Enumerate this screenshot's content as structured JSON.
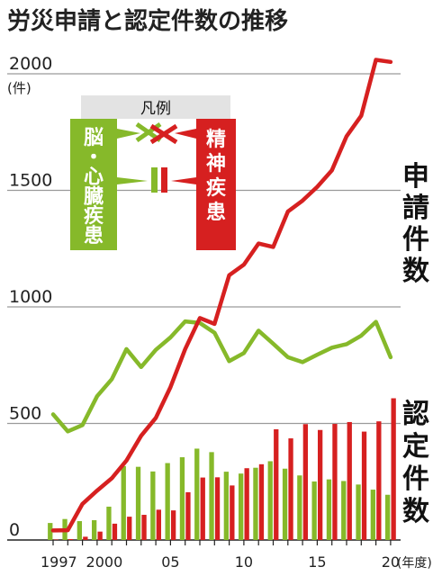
{
  "chart_data": {
    "type": "bar",
    "title": "労災申請と認定件数の推移",
    "unit_label": "(件)",
    "xaxis_suffix": "(年度)",
    "ylim": [
      0,
      2100
    ],
    "yticks": [
      0,
      500,
      1000,
      1500,
      2000
    ],
    "x": [
      1997,
      1998,
      1999,
      2000,
      2001,
      2002,
      2003,
      2004,
      2005,
      2006,
      2007,
      2008,
      2009,
      2010,
      2011,
      2012,
      2013,
      2014,
      2015,
      2016,
      2017,
      2018,
      2019,
      2020
    ],
    "xtick_labels": [
      {
        "year": 1997,
        "label": "1997"
      },
      {
        "year": 2000,
        "label": "2000"
      },
      {
        "year": 2005,
        "label": "05"
      },
      {
        "year": 2010,
        "label": "10"
      },
      {
        "year": 2015,
        "label": "15"
      },
      {
        "year": 2020,
        "label": "20"
      }
    ],
    "legend": {
      "title": "凡例",
      "left_label": "脳・心臓疾患",
      "right_label": "精神疾患"
    },
    "side_labels": {
      "applications": "申請件数",
      "approvals": "認定件数"
    },
    "series": [
      {
        "name": "脳・心臓疾患",
        "kind": "application-line",
        "color": "#86b92a",
        "values": [
          539,
          466,
          493,
          617,
          690,
          819,
          742,
          816,
          869,
          938,
          931,
          889,
          767,
          802,
          898,
          842,
          784,
          763,
          795,
          825,
          840,
          877,
          936,
          784
        ]
      },
      {
        "name": "精神疾患",
        "kind": "application-line",
        "color": "#d62020",
        "values": [
          41,
          42,
          155,
          212,
          265,
          341,
          447,
          524,
          656,
          819,
          952,
          927,
          1136,
          1181,
          1272,
          1257,
          1409,
          1456,
          1515,
          1586,
          1732,
          1820,
          2060,
          2051
        ]
      },
      {
        "name": "脳・心臓疾患",
        "kind": "approval-bar",
        "color": "#86b92a",
        "values": [
          73,
          90,
          81,
          85,
          143,
          317,
          314,
          294,
          330,
          355,
          392,
          377,
          293,
          285,
          310,
          338,
          306,
          277,
          251,
          260,
          253,
          238,
          216,
          194
        ]
      },
      {
        "name": "精神疾患",
        "kind": "approval-bar",
        "color": "#d62020",
        "values": [
          2,
          4,
          14,
          36,
          70,
          100,
          108,
          130,
          127,
          205,
          268,
          269,
          234,
          308,
          325,
          475,
          436,
          497,
          472,
          498,
          506,
          465,
          509,
          608
        ]
      }
    ]
  }
}
